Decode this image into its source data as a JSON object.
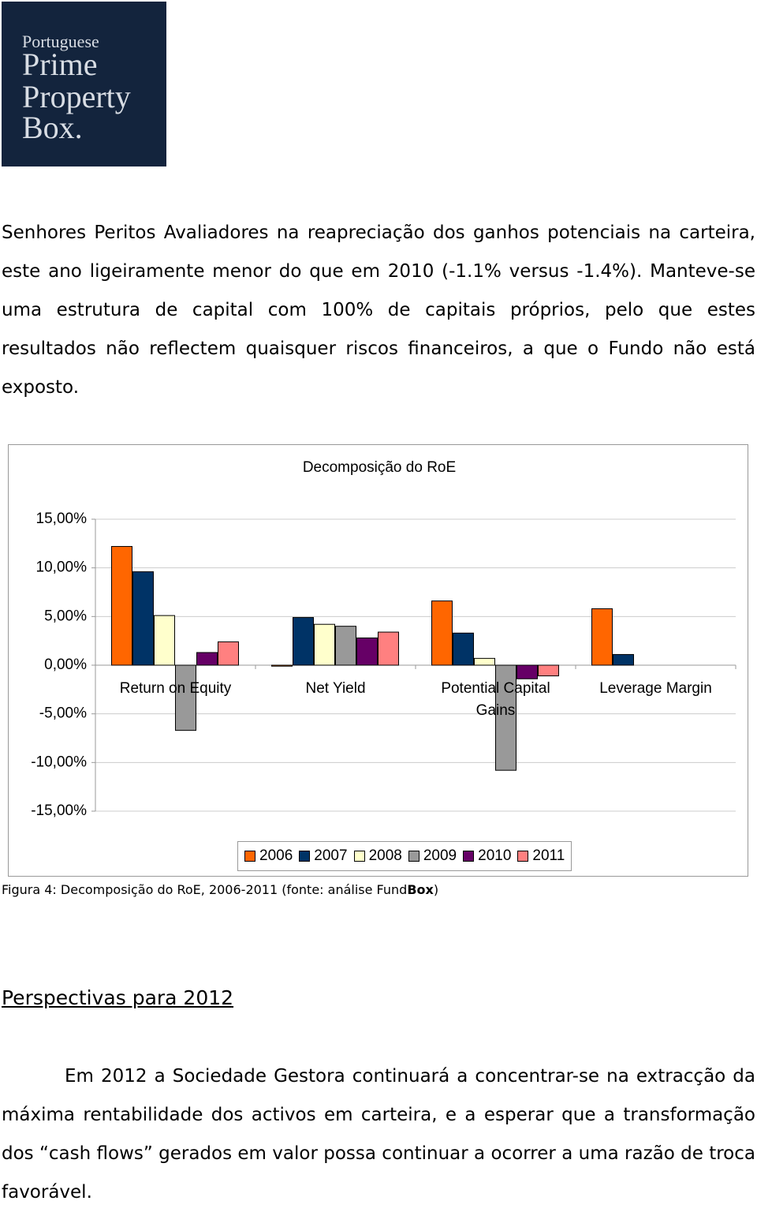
{
  "logo": {
    "lines": [
      "Portuguese",
      "Prime",
      "Property",
      "Box."
    ]
  },
  "intro": "Senhores Peritos Avaliadores na reapreciação dos ganhos potenciais na carteira, este ano ligeiramente menor do que em 2010 (-1.1% versus -1.4%). Manteve-se uma estrutura de capital com 100% de capitais próprios, pelo que estes resultados não reflectem quaisquer riscos financeiros, a que o Fundo não está exposto.",
  "chart_data": {
    "type": "bar",
    "title": "Decomposição do RoE",
    "categories": [
      "Return on Equity",
      "Net Yield",
      "Potential Capital Gains",
      "Leverage Margin"
    ],
    "series": [
      {
        "name": "2006",
        "color": "#ff6600",
        "values": [
          12.2,
          -0.1,
          6.6,
          5.8
        ]
      },
      {
        "name": "2007",
        "color": "#003366",
        "values": [
          9.6,
          4.9,
          3.3,
          1.1
        ]
      },
      {
        "name": "2008",
        "color": "#ffffcc",
        "values": [
          5.1,
          4.2,
          0.7,
          null
        ]
      },
      {
        "name": "2009",
        "color": "#999999",
        "values": [
          -6.7,
          4.0,
          -10.8,
          null
        ]
      },
      {
        "name": "2010",
        "color": "#660066",
        "values": [
          1.3,
          2.8,
          -1.4,
          null
        ]
      },
      {
        "name": "2011",
        "color": "#ff8080",
        "values": [
          2.4,
          3.4,
          -1.1,
          null
        ]
      }
    ],
    "ylim": [
      -15,
      15
    ],
    "yticks": [
      {
        "value": 15,
        "label": "15,00%"
      },
      {
        "value": 10,
        "label": "10,00%"
      },
      {
        "value": 5,
        "label": "5,00%"
      },
      {
        "value": 0,
        "label": "0,00%"
      },
      {
        "value": -5,
        "label": "-5,00%"
      },
      {
        "value": -10,
        "label": "-10,00%"
      },
      {
        "value": -15,
        "label": "-15,00%"
      }
    ],
    "grid": true,
    "legend": "bottom"
  },
  "caption": {
    "before": "Figura 4: Decomposição do RoE, 2006-2011 (fonte: análise Fund",
    "bold": "Box",
    "after": ")"
  },
  "heading": "Perspectivas para 2012",
  "outlook": "Em 2012 a Sociedade Gestora continuará a concentrar-se na extracção da máxima rentabilidade dos activos em carteira, e a esperar que a transformação dos “cash flows” gerados em valor possa continuar a ocorrer a uma razão de troca favorável."
}
